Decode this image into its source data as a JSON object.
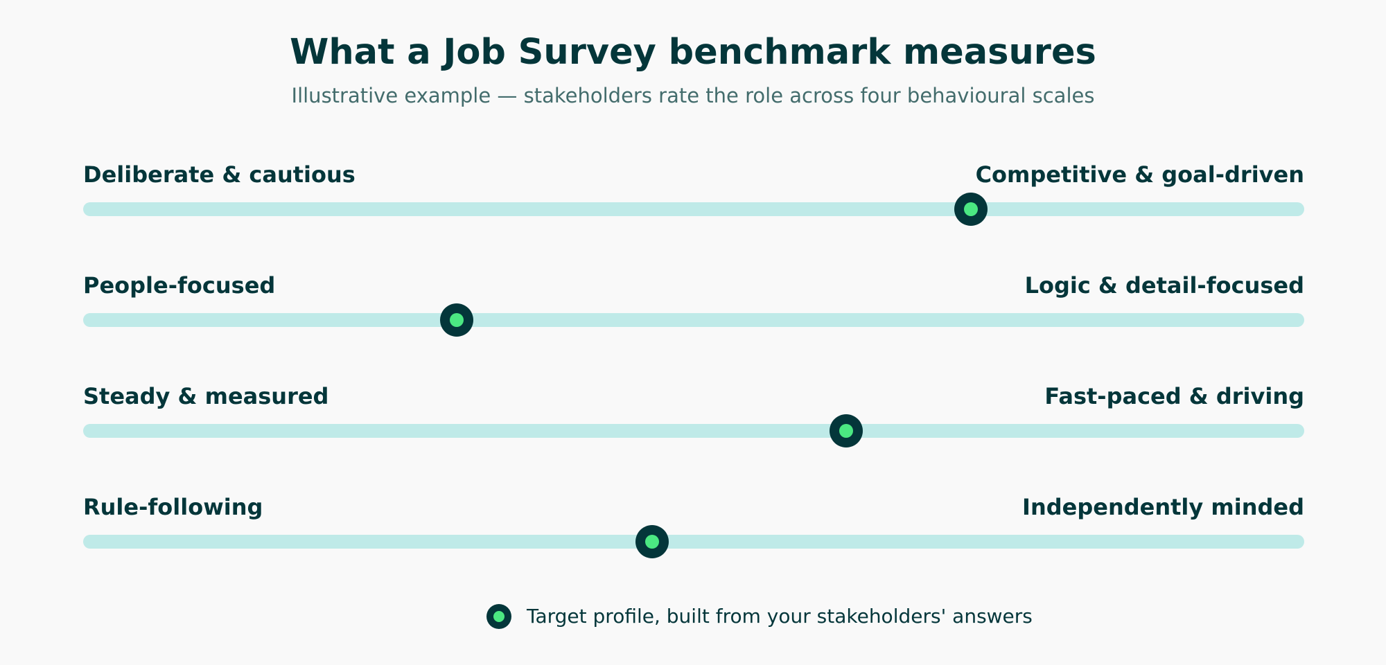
{
  "header": {
    "title": "What a Job Survey benchmark measures",
    "subtitle": "Illustrative example — stakeholders rate the role across four behavioural scales"
  },
  "scales": [
    {
      "left_label": "Deliberate & cautious",
      "right_label": "Competitive & goal-driven",
      "value": 0.727
    },
    {
      "left_label": "People-focused",
      "right_label": "Logic & detail-focused",
      "value": 0.306
    },
    {
      "left_label": "Steady & measured",
      "right_label": "Fast-paced & driving",
      "value": 0.625
    },
    {
      "left_label": "Rule-following",
      "right_label": "Independently minded",
      "value": 0.466
    }
  ],
  "legend": {
    "label": "Target profile, built from your stakeholders' answers"
  },
  "colors": {
    "background": "#f9f9f9",
    "text_dark": "#04363a",
    "subtitle": "#436c6c",
    "track": "#bfeae8",
    "marker_outer": "#04363a",
    "marker_inner": "#4be882"
  }
}
